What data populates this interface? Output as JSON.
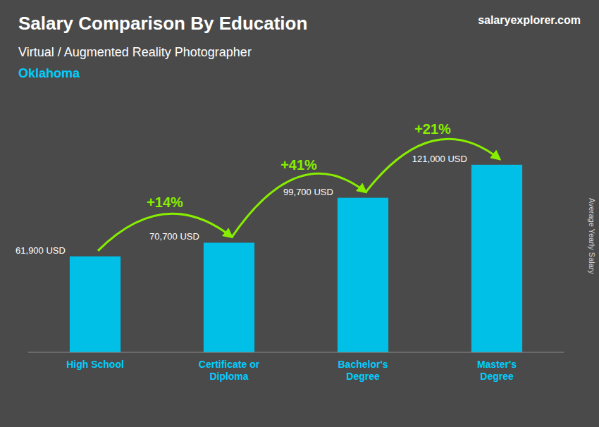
{
  "chart_data": {
    "type": "bar",
    "title": "Salary Comparison By Education",
    "subtitle": "Virtual / Augmented Reality Photographer",
    "annotations": [
      "Oklahoma",
      "salaryexplorer.com"
    ],
    "y_label": "Average Yearly Salary",
    "categories": [
      "High School",
      "Certificate or\nDiploma",
      "Bachelor's\nDegree",
      "Master's\nDegree"
    ],
    "values": [
      61900,
      70700,
      99700,
      121000
    ],
    "value_labels": [
      "61,900 USD",
      "70,700 USD",
      "99,700 USD",
      "121,000 USD"
    ],
    "data_labels": true,
    "arrow_labels": [
      "+14%",
      "+41%",
      "+21%"
    ],
    "color": "#00c0e8",
    "ylim": [
      0,
      150000
    ],
    "tick_labels": "x",
    "grid": false
  }
}
